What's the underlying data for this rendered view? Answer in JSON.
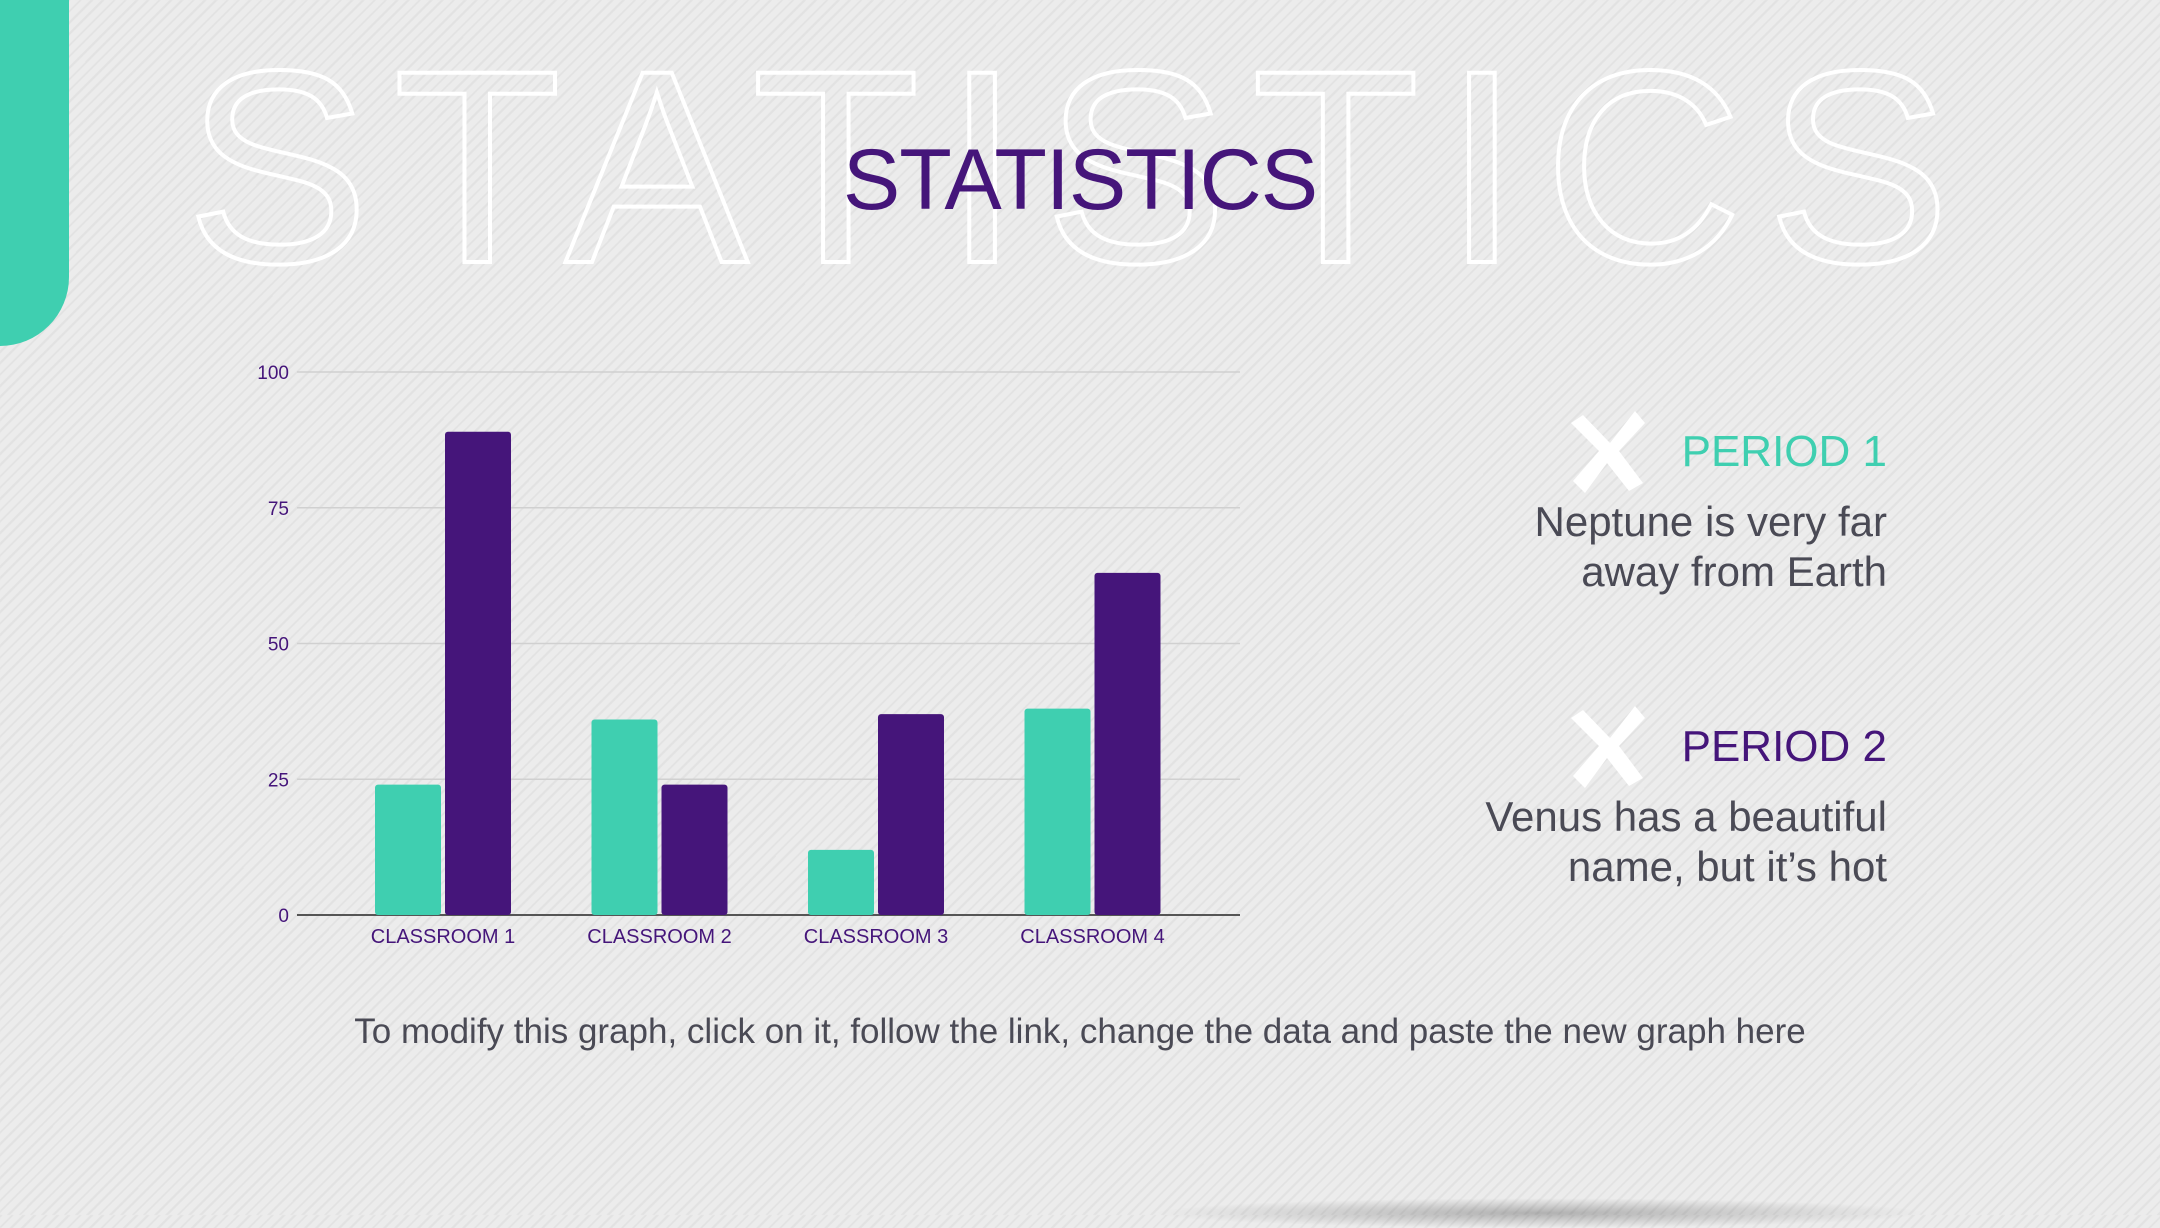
{
  "slide": {
    "title": "STATISTICS",
    "background_word": "STATISTICS",
    "footnote": "To modify this graph, click on it, follow the link, change the data and paste the new graph here"
  },
  "colors": {
    "teal": "#3fcfb0",
    "purple": "#45157a",
    "text_gray": "#4a4a55",
    "grid": "#d0d0d0"
  },
  "legend": [
    {
      "title": "PERIOD 1",
      "line1": "Neptune is very far",
      "line2": "away from Earth",
      "color": "#3fcfb0",
      "icon": "cross-icon"
    },
    {
      "title": "PERIOD 2",
      "line1": "Venus has a beautiful",
      "line2": "name, but it’s hot",
      "color": "#45157a",
      "icon": "cross-icon"
    }
  ],
  "chart_data": {
    "type": "bar",
    "categories": [
      "CLASSROOM 1",
      "CLASSROOM 2",
      "CLASSROOM 3",
      "CLASSROOM 4"
    ],
    "series": [
      {
        "name": "PERIOD 1",
        "values": [
          24,
          36,
          12,
          38
        ],
        "color": "#3fcfb0"
      },
      {
        "name": "PERIOD 2",
        "values": [
          89,
          24,
          37,
          63
        ],
        "color": "#45157a"
      }
    ],
    "ylim": [
      0,
      100
    ],
    "yticks": [
      "0",
      "25",
      "50",
      "75",
      "100"
    ],
    "grid": true,
    "legend_placement": "right"
  }
}
